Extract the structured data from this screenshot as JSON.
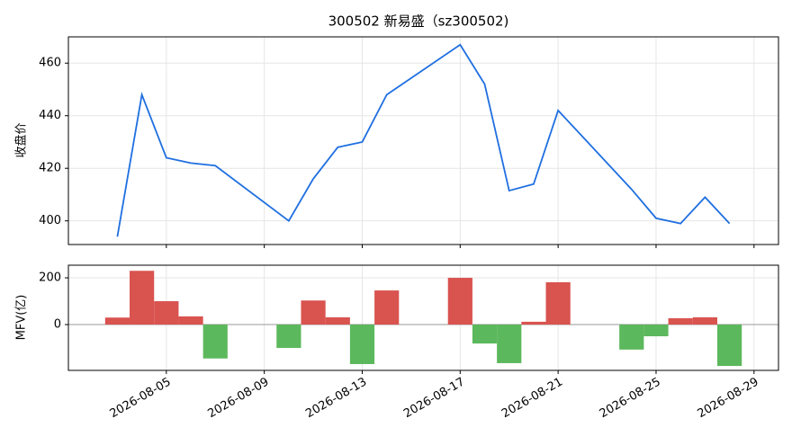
{
  "chart_data": [
    {
      "type": "line",
      "title": "300502 新易盛（sz300502)",
      "y_label": "收盘价",
      "color": "#1f6fe0",
      "x": [
        "2026-08-03",
        "2026-08-04",
        "2026-08-05",
        "2026-08-06",
        "2026-08-07",
        "2026-08-10",
        "2026-08-11",
        "2026-08-12",
        "2026-08-13",
        "2026-08-14",
        "2026-08-17",
        "2026-08-18",
        "2026-08-19",
        "2026-08-20",
        "2026-08-21",
        "2026-08-24",
        "2026-08-25",
        "2026-08-26",
        "2026-08-27",
        "2026-08-28"
      ],
      "values": [
        394,
        448,
        424,
        422,
        421,
        400,
        416,
        428,
        430,
        448,
        467,
        452,
        411.5,
        414,
        442,
        412,
        401,
        399,
        409,
        399
      ],
      "xlim": [
        "2026-08-01",
        "2026-08-30"
      ],
      "ylim": [
        391,
        470
      ],
      "yticks": [
        400,
        420,
        440,
        460
      ],
      "grid": true
    },
    {
      "type": "bar",
      "y_label": "MFV(亿)",
      "positive_color": "#d9534f",
      "negative_color": "#5cb85c",
      "x": [
        "2026-08-03",
        "2026-08-04",
        "2026-08-05",
        "2026-08-06",
        "2026-08-07",
        "2026-08-10",
        "2026-08-11",
        "2026-08-12",
        "2026-08-13",
        "2026-08-14",
        "2026-08-17",
        "2026-08-18",
        "2026-08-19",
        "2026-08-20",
        "2026-08-21",
        "2026-08-24",
        "2026-08-25",
        "2026-08-26",
        "2026-08-27",
        "2026-08-28"
      ],
      "values": [
        30,
        230,
        100,
        35,
        -145,
        -100,
        103,
        31,
        -169,
        146,
        200,
        -81,
        -165,
        12,
        181,
        -107,
        -50,
        27,
        31,
        -177
      ],
      "xlim": [
        "2026-08-01",
        "2026-08-30"
      ],
      "ylim": [
        -196,
        254
      ],
      "yticks": [
        0,
        200
      ],
      "xticks": [
        "2026-08-05",
        "2026-08-09",
        "2026-08-13",
        "2026-08-17",
        "2026-08-21",
        "2026-08-25",
        "2026-08-29"
      ],
      "grid": true
    }
  ]
}
